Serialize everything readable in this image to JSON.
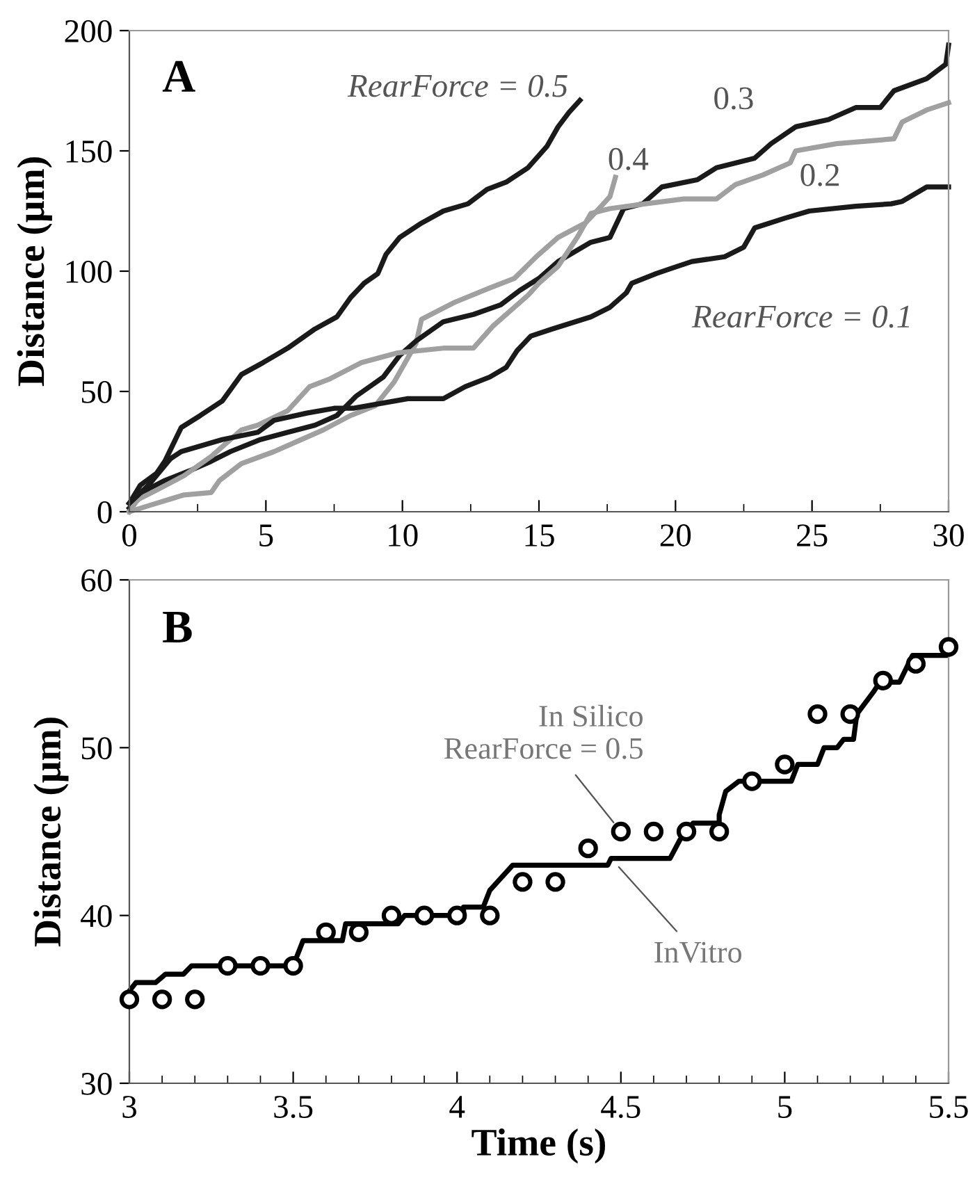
{
  "chart_data": [
    {
      "type": "line",
      "ylabel": "Distance (μm)",
      "annotations": [
        "A"
      ],
      "xlim": [
        0,
        30
      ],
      "ylim": [
        0,
        200
      ],
      "xticks": [
        0,
        {
          "value": 2.5,
          "label": null
        },
        5,
        {
          "value": 7.5,
          "label": null
        },
        10,
        {
          "value": 12.5,
          "label": null
        },
        15,
        {
          "value": 17.5,
          "label": null
        },
        20,
        {
          "value": 22.5,
          "label": null
        },
        25,
        {
          "value": 27.5,
          "label": null
        },
        30
      ],
      "yticks": [
        0,
        50,
        100,
        150,
        200
      ],
      "grid": false,
      "legend": false,
      "marker": "none",
      "line_style": "solid",
      "series": [
        {
          "name": "RearForce = 0.5",
          "color": "#1a1a1a",
          "x": [
            0,
            0.4,
            1.0,
            1.3,
            1.9,
            2.6,
            3.4,
            4.1,
            4.9,
            5.8,
            6.8,
            7.6,
            8.1,
            8.6,
            9.1,
            9.4,
            9.9,
            10.7,
            11.5,
            12.4,
            13.1,
            13.8,
            14.6,
            15.3,
            15.7,
            16.1,
            16.5
          ],
          "values": [
            3.5,
            11,
            16,
            21,
            35,
            40,
            46,
            57,
            62,
            68,
            76,
            81,
            89,
            95,
            99,
            107,
            114,
            120,
            125,
            128,
            134,
            137,
            143,
            152,
            160,
            166,
            171
          ]
        },
        {
          "name": "0.4",
          "color": "#a0a0a0",
          "x": [
            0,
            0.7,
            2.0,
            3.0,
            3.3,
            4.1,
            5.3,
            6.1,
            7.1,
            8.1,
            9.0,
            9.7,
            10.5,
            10.7,
            11.9,
            13.2,
            14.1,
            14.9,
            15.7,
            16.7,
            17.2,
            17.6,
            17.8
          ],
          "values": [
            0,
            2.5,
            7,
            8,
            13,
            20,
            25,
            29,
            34,
            40,
            44,
            54,
            70,
            80,
            87,
            93,
            97,
            106,
            114,
            120,
            126,
            131,
            139
          ]
        },
        {
          "name": "0.3",
          "color": "#1a1a1a",
          "x": [
            0,
            0.7,
            1.3,
            2.2,
            3.0,
            3.7,
            4.8,
            5.8,
            6.8,
            7.6,
            8.3,
            8.8,
            9.3,
            9.9,
            10.5,
            11.5,
            12.6,
            13.6,
            14.3,
            15.0,
            15.7,
            16.9,
            17.6,
            18.1,
            18.8,
            19.5,
            20.8,
            21.5,
            22.9,
            23.5,
            24.4,
            25.6,
            26.6,
            27.5,
            28.0,
            29.2,
            29.9,
            30.0
          ],
          "values": [
            1.5,
            9.5,
            13,
            17,
            21,
            25,
            30,
            33,
            36,
            40,
            48,
            52,
            56,
            65,
            71,
            79,
            82,
            86,
            92,
            97,
            104,
            112,
            114,
            126,
            128,
            135,
            138,
            143,
            147,
            153,
            160,
            163,
            168,
            168,
            175,
            180,
            186,
            194
          ]
        },
        {
          "name": "0.2",
          "color": "#a0a0a0",
          "x": [
            0,
            0.3,
            1.0,
            2.0,
            3.0,
            4.1,
            4.7,
            5.8,
            6.6,
            7.3,
            8.5,
            9.8,
            11.5,
            12.6,
            13.3,
            14.1,
            14.6,
            15.0,
            15.7,
            16.4,
            16.9,
            17.6,
            18.9,
            20.3,
            21.5,
            22.2,
            23.2,
            24.2,
            24.4,
            25.9,
            28.0,
            28.3,
            29.2,
            30.0
          ],
          "values": [
            0,
            5,
            9,
            15,
            23,
            34,
            36,
            42,
            52,
            55,
            62,
            66,
            68,
            68,
            77,
            85,
            90,
            95,
            102,
            114,
            124,
            126,
            128,
            130,
            130,
            136,
            140,
            145,
            150,
            153,
            155,
            162,
            167,
            170
          ]
        },
        {
          "name": "RearForce = 0.1",
          "color": "#1a1a1a",
          "x": [
            0,
            0.7,
            1.5,
            1.9,
            3.4,
            4.7,
            5.3,
            6.5,
            7.5,
            8.2,
            10.2,
            11.5,
            12.3,
            13.2,
            13.8,
            14.2,
            14.7,
            15.5,
            16.9,
            17.6,
            18.2,
            18.4,
            19.3,
            19.8,
            20.6,
            21.8,
            22.5,
            22.9,
            24.0,
            24.9,
            26.6,
            27.9,
            28.3,
            29.2,
            30.0
          ],
          "values": [
            3.5,
            11,
            22,
            25,
            30,
            33,
            38,
            41,
            43,
            43,
            47,
            47,
            52,
            56,
            60,
            67,
            73,
            76,
            81,
            85,
            91,
            95,
            99,
            101,
            104,
            106,
            110,
            118,
            122,
            125,
            127,
            128,
            129,
            135,
            135
          ]
        }
      ]
    },
    {
      "type": "line",
      "xlabel": "Time (s)",
      "ylabel": "Distance (μm)",
      "annotations": [
        "B"
      ],
      "xlim": [
        3,
        5.5
      ],
      "ylim": [
        30,
        60
      ],
      "xticks": [
        3,
        {
          "value": 3.1,
          "label": null
        },
        {
          "value": 3.2,
          "label": null
        },
        {
          "value": 3.3,
          "label": null
        },
        {
          "value": 3.4,
          "label": null
        },
        3.5,
        {
          "value": 3.6,
          "label": null
        },
        {
          "value": 3.7,
          "label": null
        },
        {
          "value": 3.8,
          "label": null
        },
        {
          "value": 3.9,
          "label": null
        },
        4,
        {
          "value": 4.1,
          "label": null
        },
        {
          "value": 4.2,
          "label": null
        },
        {
          "value": 4.3,
          "label": null
        },
        {
          "value": 4.4,
          "label": null
        },
        4.5,
        {
          "value": 4.6,
          "label": null
        },
        {
          "value": 4.7,
          "label": null
        },
        {
          "value": 4.8,
          "label": null
        },
        {
          "value": 4.9,
          "label": null
        },
        5,
        {
          "value": 5.1,
          "label": null
        },
        {
          "value": 5.2,
          "label": null
        },
        {
          "value": 5.3,
          "label": null
        },
        {
          "value": 5.4,
          "label": null
        },
        5.5
      ],
      "yticks": [
        30,
        40,
        50,
        60
      ],
      "grid": false,
      "legend": false,
      "line_style": "solid",
      "series": [
        {
          "name": "In Silico\nRearForce = 0.5",
          "type": "scatter",
          "marker": "circle",
          "color": "#000000",
          "x": [
            3.0,
            3.1,
            3.2,
            3.3,
            3.4,
            3.5,
            3.6,
            3.7,
            3.8,
            3.9,
            4.0,
            4.1,
            4.2,
            4.3,
            4.4,
            4.5,
            4.6,
            4.7,
            4.8,
            4.9,
            5.0,
            5.1,
            5.2,
            5.3,
            5.4,
            5.5
          ],
          "values": [
            35,
            35,
            35,
            37,
            37,
            37,
            39,
            39,
            40,
            40,
            40,
            40,
            42,
            42,
            44,
            45,
            45,
            45,
            45,
            48,
            49,
            52,
            52,
            54,
            55,
            56
          ]
        },
        {
          "name": "InVitro",
          "type": "line",
          "marker": "none",
          "color": "#000000",
          "x": [
            3.0,
            3.02,
            3.08,
            3.11,
            3.165,
            3.19,
            3.31,
            3.31,
            3.5,
            3.53,
            3.65,
            3.66,
            3.82,
            3.84,
            4.02,
            4.02,
            4.08,
            4.1,
            4.17,
            4.46,
            4.47,
            4.65,
            4.68,
            4.72,
            4.8,
            4.8,
            4.82,
            4.86,
            5.02,
            5.04,
            5.1,
            5.12,
            5.16,
            5.18,
            5.21,
            5.22,
            5.27,
            5.29,
            5.35,
            5.39,
            5.49
          ],
          "values": [
            35.5,
            36.0,
            36.0,
            36.5,
            36.5,
            37.0,
            37.0,
            37.0,
            37.0,
            38.5,
            38.5,
            39.5,
            39.5,
            40.0,
            40.0,
            40.5,
            40.5,
            41.5,
            43.0,
            43.0,
            43.4,
            43.4,
            44.5,
            45.5,
            45.5,
            46.0,
            47.4,
            48.0,
            48.0,
            49.0,
            49.0,
            50.0,
            50.0,
            50.5,
            50.5,
            52.0,
            53.3,
            53.9,
            53.9,
            55.5,
            55.5
          ]
        }
      ]
    }
  ]
}
